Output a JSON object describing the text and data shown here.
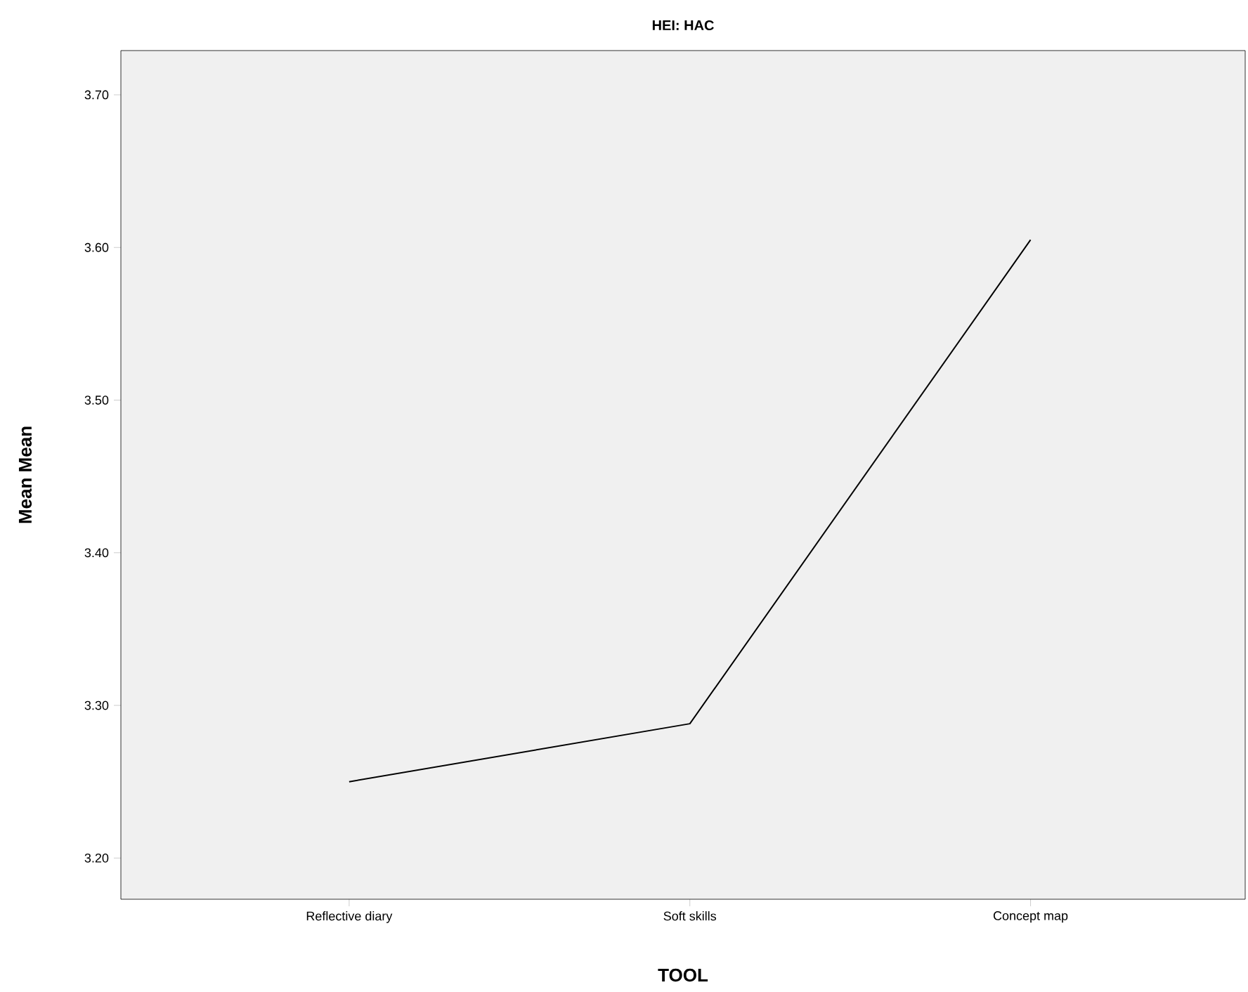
{
  "chart_data": {
    "type": "line",
    "title": "HEI: HAC",
    "xlabel": "TOOL",
    "ylabel": "Mean Mean",
    "categories": [
      "Reflective diary",
      "Soft skills",
      "Concept map"
    ],
    "series": [
      {
        "color": "#000000",
        "values": [
          3.25,
          3.288,
          3.605
        ]
      }
    ],
    "ylim": [
      3.173,
      3.729
    ],
    "yticks": [
      {
        "value": 3.2,
        "label": "3.20"
      },
      {
        "value": 3.3,
        "label": "3.30"
      },
      {
        "value": 3.4,
        "label": "3.40"
      },
      {
        "value": 3.5,
        "label": "3.50"
      },
      {
        "value": 3.6,
        "label": "3.60"
      },
      {
        "value": 3.7,
        "label": "3.70"
      }
    ],
    "marker": "none",
    "line_style": "solid"
  }
}
